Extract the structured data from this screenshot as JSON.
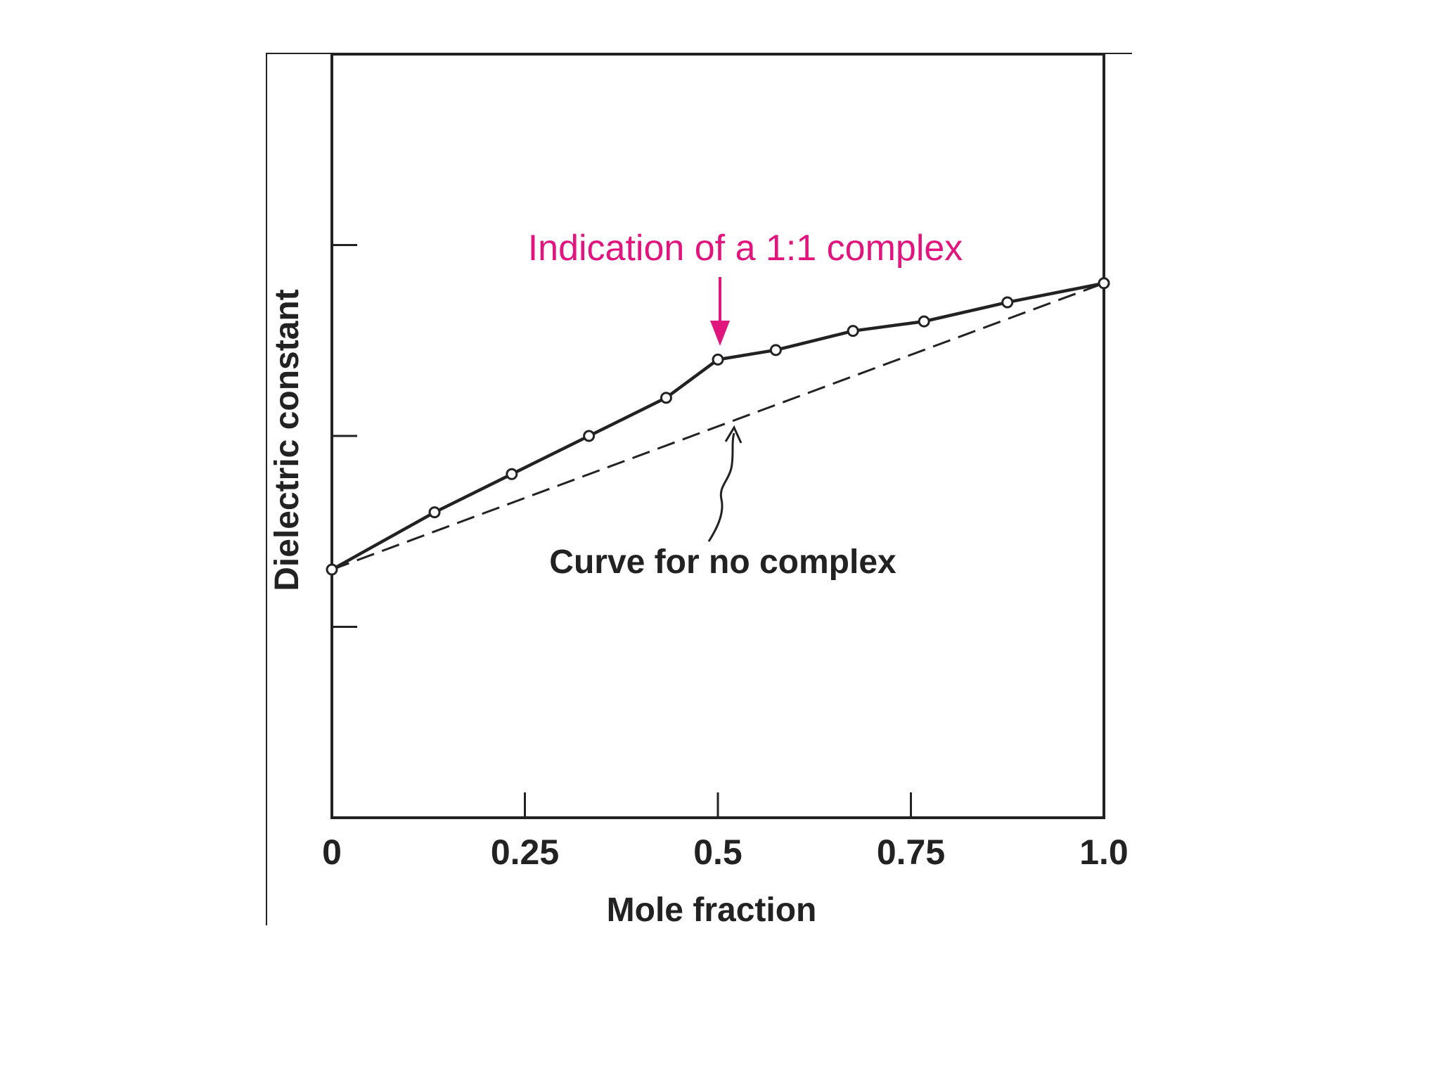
{
  "chart_data": {
    "type": "line",
    "title": "",
    "xlabel": "Mole fraction",
    "ylabel": "Dielectric constant",
    "xlim": [
      0,
      1.0
    ],
    "ylim": [
      0,
      4
    ],
    "xticks": [
      {
        "value": 0,
        "label": "0"
      },
      {
        "value": 0.25,
        "label": "0.25"
      },
      {
        "value": 0.5,
        "label": "0.5"
      },
      {
        "value": 0.75,
        "label": "0.75"
      },
      {
        "value": 1.0,
        "label": "1.0"
      }
    ],
    "yticks": [
      1,
      2,
      3
    ],
    "grid": false,
    "legend": "none",
    "series": [
      {
        "style": "solid-with-markers",
        "color": "#222222",
        "x": [
          0,
          0.133,
          0.233,
          0.333,
          0.433,
          0.5,
          0.575,
          0.675,
          0.767,
          0.875,
          1.0
        ],
        "y": [
          1.3,
          1.6,
          1.8,
          2.0,
          2.2,
          2.4,
          2.45,
          2.55,
          2.6,
          2.7,
          2.8
        ]
      },
      {
        "style": "dashed",
        "color": "#222222",
        "x": [
          0,
          1.0
        ],
        "y": [
          1.3,
          2.8
        ]
      }
    ],
    "annotations": [
      {
        "text": "Indication of a 1:1 complex",
        "color": "#e0157e",
        "points_to": {
          "x": 0.5,
          "y": 2.4
        }
      },
      {
        "text": "Curve for no complex",
        "color": "#222222",
        "points_to": {
          "x": 0.5,
          "y": 2.05
        }
      }
    ]
  }
}
